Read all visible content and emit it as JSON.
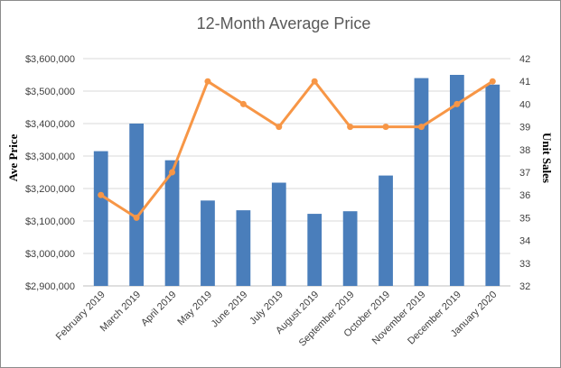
{
  "chart_data": {
    "type": "bar",
    "title": "12-Month Average Price",
    "categories": [
      "February 2019",
      "March 2019",
      "April 2019",
      "May 2019",
      "June 2019",
      "July 2019",
      "August 2019",
      "September 2019",
      "October 2019",
      "November 2019",
      "December 2019",
      "January 2020"
    ],
    "ylabel": "Ave Price",
    "y2label": "Unit Sales",
    "ylim": [
      2900000,
      3600000
    ],
    "y2lim": [
      32,
      42
    ],
    "yticks": [
      "$2,900,000",
      "$3,000,000",
      "$3,100,000",
      "$3,200,000",
      "$3,300,000",
      "$3,400,000",
      "$3,500,000",
      "$3,600,000"
    ],
    "y2ticks": [
      "32",
      "33",
      "34",
      "35",
      "36",
      "37",
      "38",
      "39",
      "40",
      "41",
      "42"
    ],
    "grid": true,
    "legend": "none",
    "series": [
      {
        "type": "bar",
        "axis": "left",
        "color": "#4a7ebb",
        "values": [
          3315000,
          3400000,
          3287000,
          3163000,
          3133000,
          3218000,
          3122000,
          3130000,
          3240000,
          3540000,
          3550000,
          3520000
        ]
      },
      {
        "type": "line",
        "axis": "right",
        "color": "#f79646",
        "values": [
          36,
          35,
          37,
          41,
          40,
          39,
          41,
          39,
          39,
          39,
          40,
          41
        ]
      }
    ]
  }
}
